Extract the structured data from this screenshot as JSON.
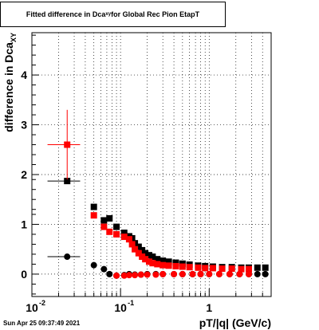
{
  "title": {
    "prefix": "Fitted difference in Dca",
    "sub": "xy",
    "suffix": "  for Global Rec Pion EtapT"
  },
  "footer": "Sun Apr 25 09:37:49 2021",
  "chart_data": {
    "type": "scatter",
    "title": "Fitted difference in Dca_xy for Global Rec Pion EtapT",
    "xlabel": "pT/|q| (GeV/c)",
    "ylabel_prefix": "difference in Dca",
    "ylabel_sub": "XY",
    "xscale": "log",
    "xlim": [
      0.01,
      5
    ],
    "ylim": [
      -0.45,
      4.85
    ],
    "xticks": [
      {
        "v": 0.01,
        "t": "10"
      },
      {
        "v": 0.1,
        "t": "10"
      },
      {
        "v": 1,
        "t": "1"
      }
    ],
    "xtick_exp": [
      "-2",
      "-1"
    ],
    "yticks": [
      0,
      1,
      2,
      3,
      4
    ],
    "grid": true,
    "series": [
      {
        "marker": "square",
        "color": "#000000",
        "x": [
          0.025,
          0.05,
          0.065,
          0.075,
          0.09,
          0.11,
          0.125,
          0.135,
          0.145,
          0.16,
          0.175,
          0.19,
          0.21,
          0.23,
          0.26,
          0.3,
          0.35,
          0.42,
          0.5,
          0.6,
          0.75,
          0.9,
          1.1,
          1.4,
          1.8,
          2.3,
          2.8,
          3.5,
          4.3
        ],
        "y": [
          1.87,
          1.35,
          1.08,
          1.12,
          0.95,
          0.83,
          0.76,
          0.72,
          0.62,
          0.55,
          0.48,
          0.42,
          0.38,
          0.35,
          0.3,
          0.27,
          0.25,
          0.23,
          0.21,
          0.19,
          0.17,
          0.16,
          0.15,
          0.14,
          0.14,
          0.13,
          0.13,
          0.13,
          0.13
        ]
      },
      {
        "marker": "square",
        "color": "#ff0000",
        "x": [
          0.025,
          0.05,
          0.065,
          0.075,
          0.09,
          0.11,
          0.125,
          0.135,
          0.145,
          0.16,
          0.175,
          0.19,
          0.21,
          0.23,
          0.26,
          0.3,
          0.35,
          0.42,
          0.5,
          0.6,
          0.75,
          0.9,
          1.1,
          1.4,
          1.8,
          2.3,
          2.8
        ],
        "y": [
          2.6,
          1.18,
          0.95,
          0.85,
          0.8,
          0.75,
          0.7,
          0.6,
          0.5,
          0.42,
          0.35,
          0.3,
          0.25,
          0.22,
          0.2,
          0.18,
          0.17,
          0.16,
          0.15,
          0.14,
          0.13,
          0.12,
          0.12,
          0.11,
          0.11,
          0.1,
          0.1
        ]
      },
      {
        "marker": "circle",
        "color": "#000000",
        "x": [
          0.025,
          0.05,
          0.065,
          0.075,
          0.09,
          0.11,
          0.125,
          0.145,
          0.17,
          0.2,
          0.25,
          0.3,
          0.4,
          0.5,
          0.65,
          0.8,
          1.0,
          1.3,
          1.7,
          2.2,
          2.8,
          3.5,
          4.3
        ],
        "y": [
          0.35,
          0.18,
          0.1,
          0.0,
          -0.03,
          -0.02,
          0.0,
          -0.01,
          -0.01,
          0.0,
          0.0,
          0.0,
          0.0,
          0.0,
          0.0,
          0.0,
          0.0,
          0.0,
          0.0,
          0.0,
          0.0,
          0.0,
          0.0
        ]
      },
      {
        "marker": "circle",
        "color": "#ff0000",
        "x": [
          0.09,
          0.11,
          0.125,
          0.145,
          0.17,
          0.2,
          0.25,
          0.3,
          0.4,
          0.5,
          0.65,
          0.8,
          1.0,
          1.3,
          1.7,
          2.2,
          2.8
        ],
        "y": [
          -0.03,
          -0.03,
          -0.02,
          -0.02,
          -0.01,
          -0.01,
          -0.01,
          0.0,
          0.0,
          0.0,
          0.0,
          0.0,
          0.0,
          0.0,
          0.0,
          0.0,
          0.0
        ]
      }
    ]
  }
}
